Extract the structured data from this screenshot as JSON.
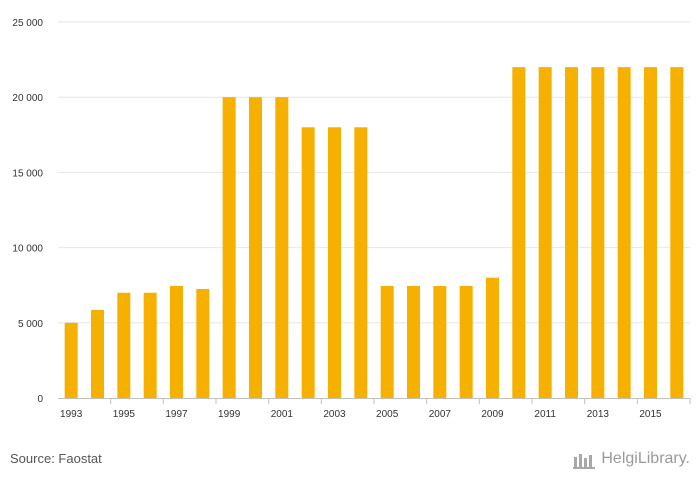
{
  "chart_data": {
    "type": "bar",
    "title": "",
    "xlabel": "",
    "ylabel": "",
    "categories": [
      "1993",
      "1994",
      "1995",
      "1996",
      "1997",
      "1998",
      "1999",
      "2000",
      "2001",
      "2002",
      "2003",
      "2004",
      "2005",
      "2006",
      "2007",
      "2008",
      "2009",
      "2010",
      "2011",
      "2012",
      "2013",
      "2014",
      "2015",
      "2016"
    ],
    "x_tick_labels": [
      "1993",
      "1995",
      "1997",
      "1999",
      "2001",
      "2003",
      "2005",
      "2007",
      "2009",
      "2011",
      "2013",
      "2015"
    ],
    "values": [
      5000,
      5850,
      7000,
      7000,
      7450,
      7250,
      20000,
      20000,
      20000,
      18000,
      18000,
      18000,
      7450,
      7450,
      7450,
      7450,
      8000,
      22000,
      22000,
      22000,
      22000,
      22000,
      22000,
      22000
    ],
    "ylim": [
      0,
      25000
    ],
    "y_ticks": [
      0,
      5000,
      10000,
      15000,
      20000,
      25000
    ],
    "y_tick_labels": [
      "0",
      "5 000",
      "10 000",
      "15 000",
      "20 000",
      "25 000"
    ],
    "grid": true,
    "bar_color": "#f5b000"
  },
  "footer": {
    "source": "Source: Faostat",
    "brand": "HelgiLibrary."
  }
}
